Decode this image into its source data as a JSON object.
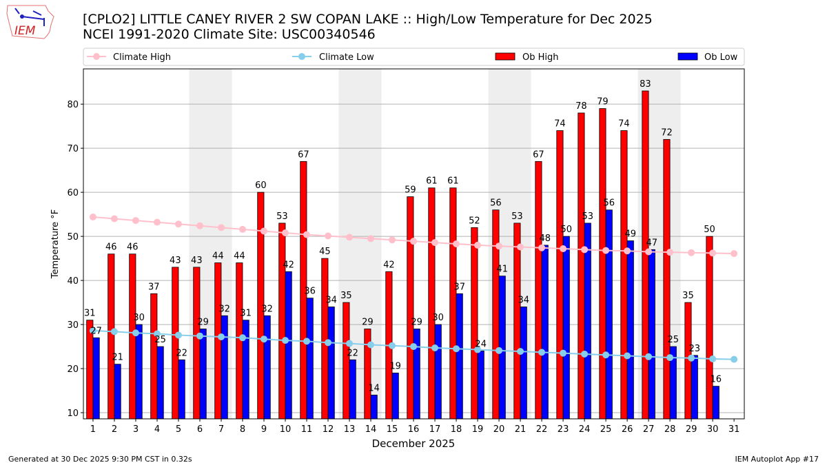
{
  "header": {
    "logo_text": "IEM",
    "title_line1": "[CPLO2] LITTLE CANEY RIVER 2 SW COPAN LAKE :: High/Low Temperature for Dec 2025",
    "title_line2": "NCEI 1991-2020 Climate Site: USC00340546"
  },
  "footer": {
    "generated": "Generated at 30 Dec 2025 9:30 PM CST in 0.32s",
    "app": "IEM Autoplot App #17"
  },
  "chart_data": {
    "type": "bar",
    "xlabel": "December 2025",
    "ylabel": "Temperature °F",
    "ylim": [
      8.6,
      88
    ],
    "xlim": [
      0.55,
      31.48
    ],
    "yticks": [
      10,
      20,
      30,
      40,
      50,
      60,
      70,
      80
    ],
    "x": [
      1,
      2,
      3,
      4,
      5,
      6,
      7,
      8,
      9,
      10,
      11,
      12,
      13,
      14,
      15,
      16,
      17,
      18,
      19,
      20,
      21,
      22,
      23,
      24,
      25,
      26,
      27,
      28,
      29,
      30,
      31
    ],
    "shaded_days": [
      [
        6,
        7
      ],
      [
        13,
        14
      ],
      [
        20,
        21
      ],
      [
        27,
        28
      ]
    ],
    "grid": true,
    "legend_placement": "top",
    "colors": {
      "ob_high": "#ff0000",
      "ob_low": "#0000ff",
      "climate_high": "#ffc0cb",
      "climate_low": "#87ceeb",
      "shade": "#eeeeee"
    },
    "series": [
      {
        "name": "Climate High",
        "kind": "line",
        "values": [
          54.4,
          54.0,
          53.6,
          53.2,
          52.8,
          52.4,
          52.0,
          51.6,
          51.2,
          50.8,
          50.4,
          50.1,
          49.8,
          49.5,
          49.2,
          48.9,
          48.6,
          48.3,
          48.0,
          47.8,
          47.6,
          47.4,
          47.2,
          47.0,
          46.8,
          46.7,
          46.5,
          46.4,
          46.3,
          46.2,
          46.1
        ]
      },
      {
        "name": "Climate Low",
        "kind": "line",
        "values": [
          28.6,
          28.4,
          28.1,
          27.9,
          27.6,
          27.4,
          27.2,
          27.0,
          26.7,
          26.4,
          26.2,
          25.9,
          25.7,
          25.4,
          25.2,
          25.0,
          24.7,
          24.5,
          24.3,
          24.1,
          23.9,
          23.7,
          23.5,
          23.3,
          23.1,
          22.9,
          22.7,
          22.5,
          22.4,
          22.2,
          22.1
        ]
      },
      {
        "name": "Ob High",
        "kind": "bar",
        "values": [
          31,
          46,
          46,
          37,
          43,
          43,
          44,
          44,
          60,
          53,
          67,
          45,
          35,
          29,
          42,
          59,
          61,
          61,
          52,
          56,
          53,
          67,
          74,
          78,
          79,
          74,
          83,
          72,
          35,
          50,
          null
        ]
      },
      {
        "name": "Ob Low",
        "kind": "bar",
        "values": [
          27,
          21,
          30,
          25,
          22,
          29,
          32,
          31,
          32,
          42,
          36,
          34,
          22,
          14,
          19,
          29,
          30,
          37,
          24,
          41,
          34,
          48,
          50,
          53,
          56,
          49,
          47,
          25,
          23,
          16,
          null
        ]
      }
    ]
  }
}
